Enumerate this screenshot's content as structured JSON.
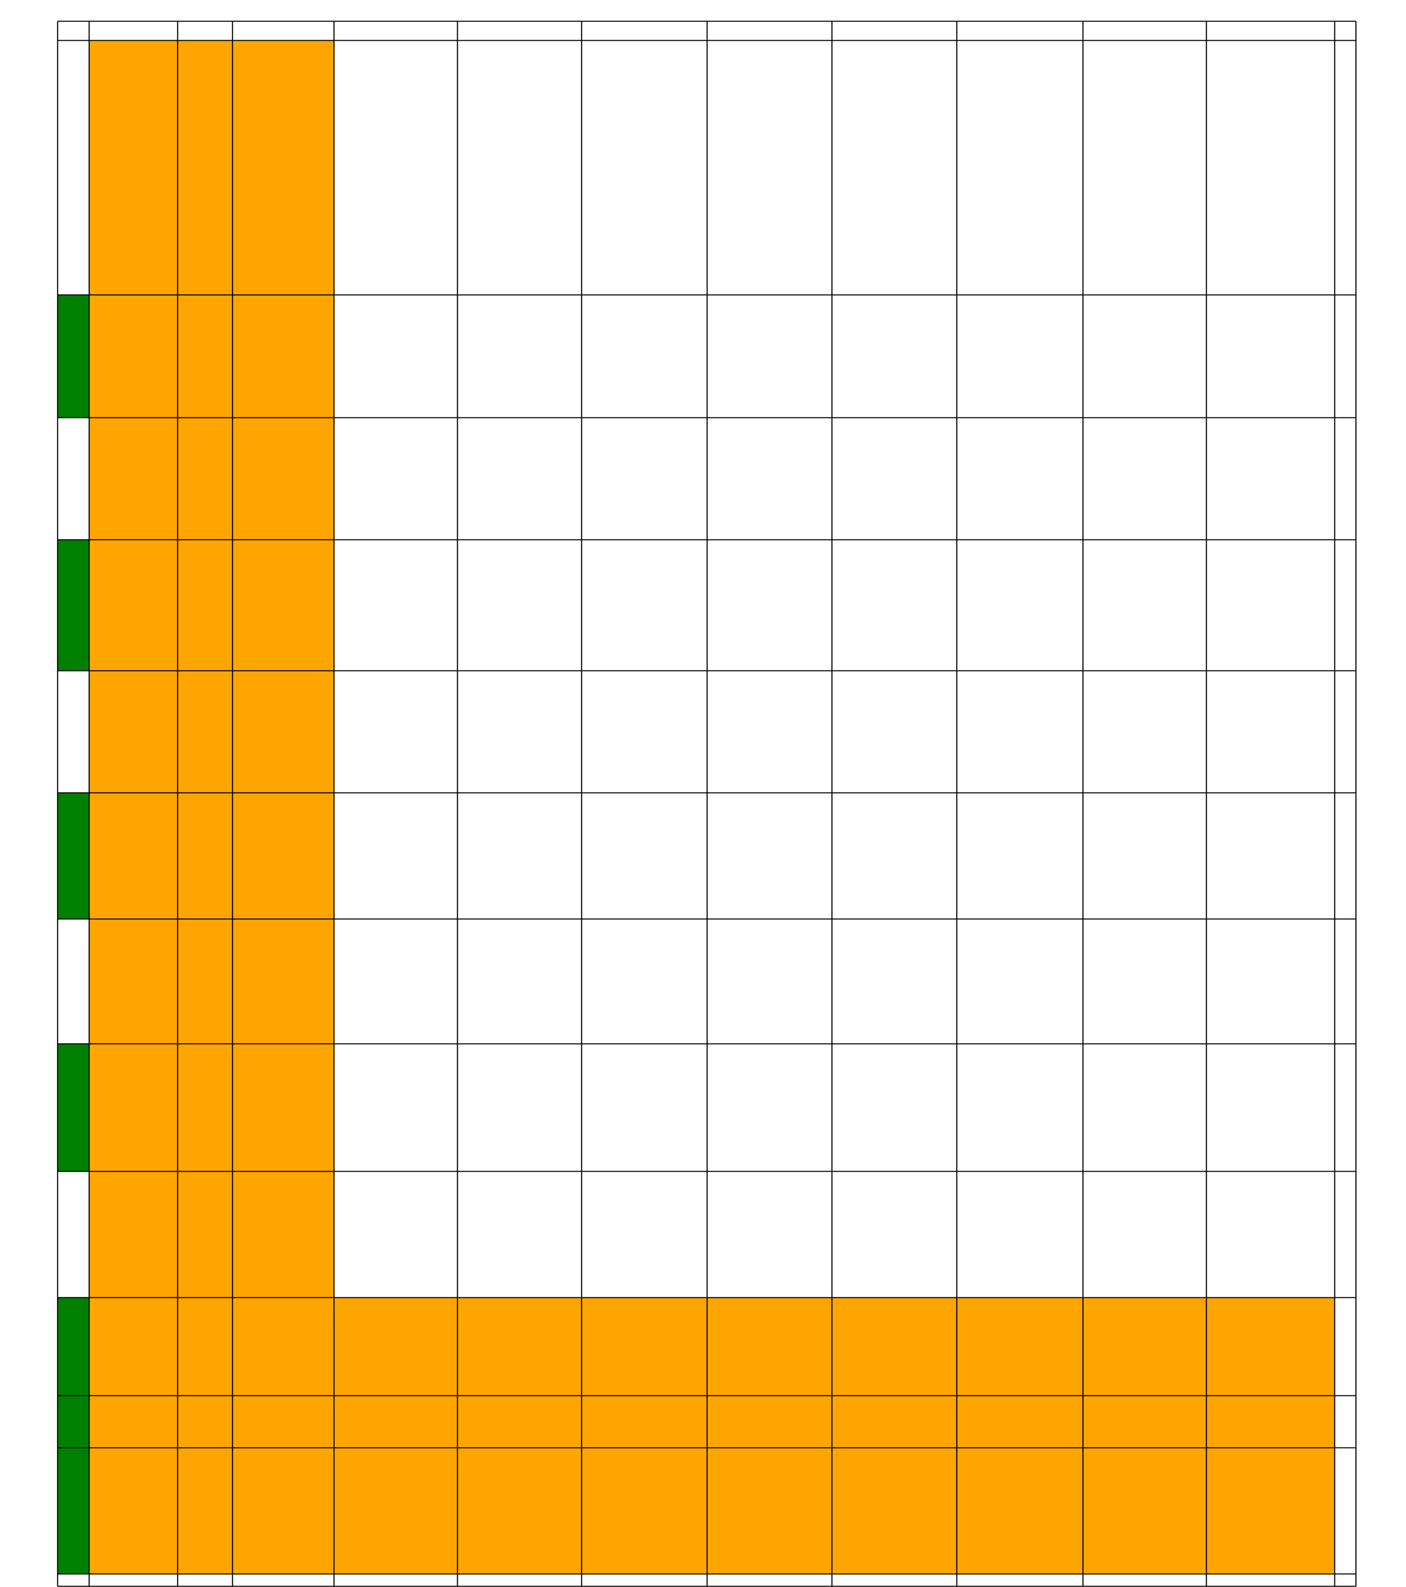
{
  "grid": {
    "column_count": 14,
    "row_count": 14,
    "colors": {
      "background": "#ffffff",
      "line": "#000000",
      "orange_fill": "#FFA500",
      "green_fill": "#008000"
    },
    "orange_blocks": [
      {
        "first_row": 1,
        "last_row": 12,
        "first_col": 1,
        "last_col": 3
      },
      {
        "first_row": 10,
        "last_row": 12,
        "first_col": 4,
        "last_col": 11
      }
    ],
    "green_cells": [
      {
        "row": 2,
        "col": 0
      },
      {
        "row": 4,
        "col": 0
      },
      {
        "row": 6,
        "col": 0
      },
      {
        "row": 8,
        "col": 0
      },
      {
        "row": 10,
        "col": 0
      },
      {
        "row": 11,
        "col": 0
      },
      {
        "row": 12,
        "col": 0
      }
    ]
  }
}
